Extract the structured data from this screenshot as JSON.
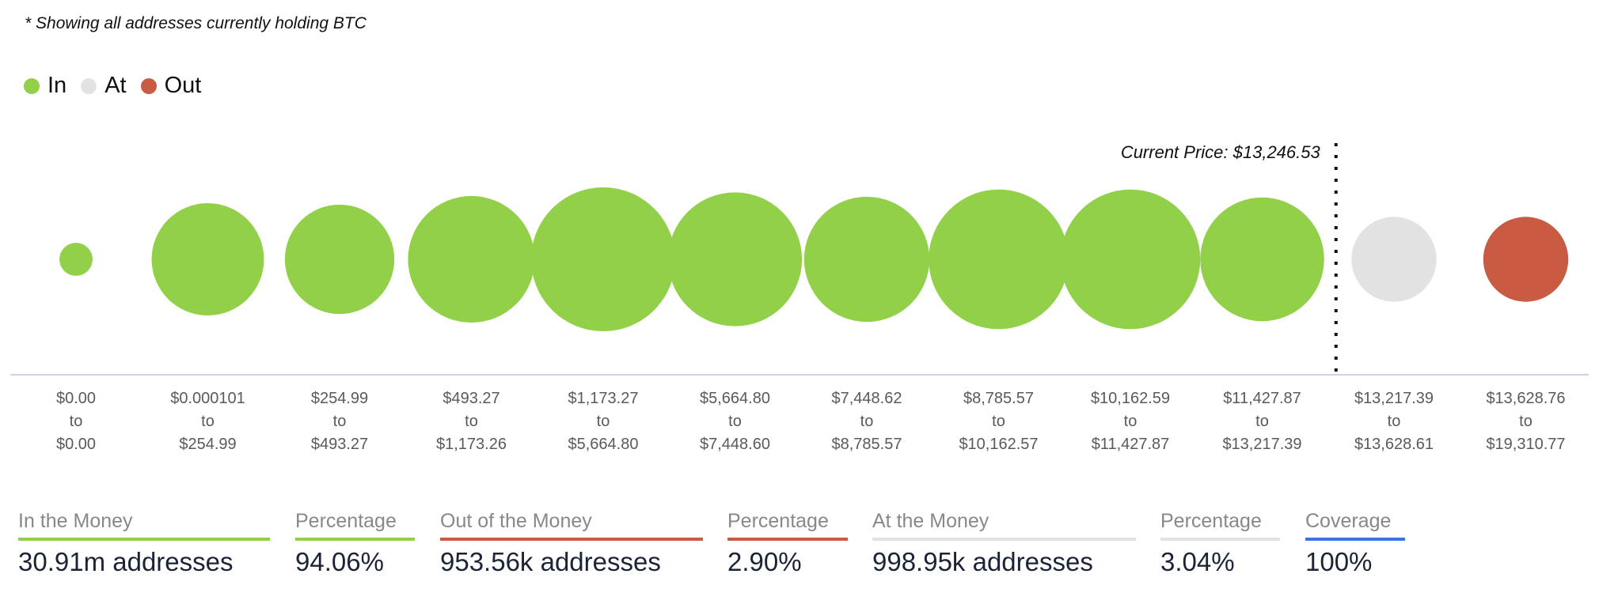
{
  "note": "* Showing all addresses currently holding BTC",
  "colors": {
    "in": "#92d04a",
    "at": "#e2e2e2",
    "out": "#c95b42",
    "coverage": "#3a74e6",
    "axis": "#cbd3e6"
  },
  "chart_data": {
    "type": "bubble",
    "legend": [
      {
        "label": "In",
        "key": "in"
      },
      {
        "label": "At",
        "key": "at"
      },
      {
        "label": "Out",
        "key": "out"
      }
    ],
    "legend_position": "top-left",
    "current_price_label": "Current Price: $13,246.53",
    "current_price": 13246.53,
    "bins": [
      {
        "from": "$0.00",
        "to": "$0.00",
        "status": "in",
        "relative_size": 0.23
      },
      {
        "from": "$0.000101",
        "to": "$254.99",
        "status": "in",
        "relative_size": 0.78
      },
      {
        "from": "$254.99",
        "to": "$493.27",
        "status": "in",
        "relative_size": 0.76
      },
      {
        "from": "$493.27",
        "to": "$1,173.26",
        "status": "in",
        "relative_size": 0.88
      },
      {
        "from": "$1,173.27",
        "to": "$5,664.80",
        "status": "in",
        "relative_size": 1.0
      },
      {
        "from": "$5,664.80",
        "to": "$7,448.60",
        "status": "in",
        "relative_size": 0.93
      },
      {
        "from": "$7,448.62",
        "to": "$8,785.57",
        "status": "in",
        "relative_size": 0.87
      },
      {
        "from": "$8,785.57",
        "to": "$10,162.57",
        "status": "in",
        "relative_size": 0.97
      },
      {
        "from": "$10,162.59",
        "to": "$11,427.87",
        "status": "in",
        "relative_size": 0.97
      },
      {
        "from": "$11,427.87",
        "to": "$13,217.39",
        "status": "in",
        "relative_size": 0.86
      },
      {
        "from": "$13,217.39",
        "to": "$13,628.61",
        "status": "at",
        "relative_size": 0.59
      },
      {
        "from": "$13,628.76",
        "to": "$19,310.77",
        "status": "out",
        "relative_size": 0.59
      }
    ],
    "to_word": "to"
  },
  "stats": [
    {
      "header": "In the Money",
      "value": "30.91m addresses",
      "color": "#92d04a"
    },
    {
      "header": "Percentage",
      "value": "94.06%",
      "color": "#92d04a"
    },
    {
      "header": "Out of the Money",
      "value": "953.56k addresses",
      "color": "#c95b42"
    },
    {
      "header": "Percentage",
      "value": "2.90%",
      "color": "#c95b42"
    },
    {
      "header": "At the Money",
      "value": "998.95k addresses",
      "color": "#e2e2e2"
    },
    {
      "header": "Percentage",
      "value": "3.04%",
      "color": "#e2e2e2"
    },
    {
      "header": "Coverage",
      "value": "100%",
      "color": "#3a74e6"
    }
  ]
}
